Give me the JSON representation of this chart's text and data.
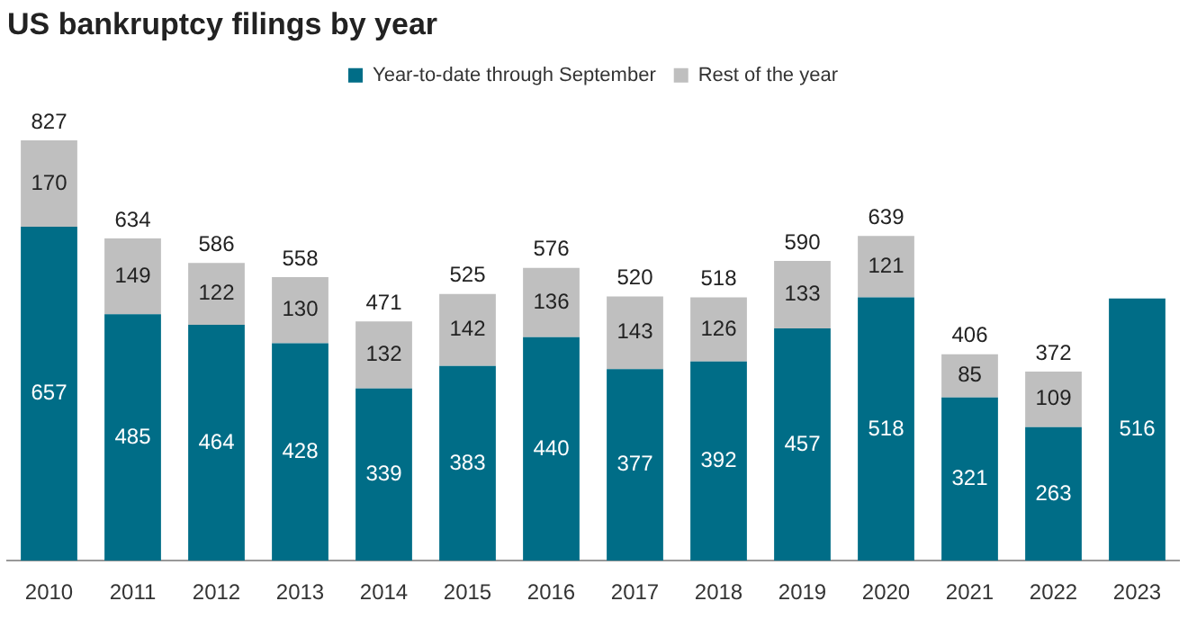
{
  "chart_data": {
    "type": "bar",
    "title": "US bankruptcy filings by year",
    "categories": [
      "2010",
      "2011",
      "2012",
      "2013",
      "2014",
      "2015",
      "2016",
      "2017",
      "2018",
      "2019",
      "2020",
      "2021",
      "2022",
      "2023"
    ],
    "stacked": true,
    "data_labels": true,
    "legend": "top",
    "grid": false,
    "tick_labels": "x",
    "series": [
      {
        "name": "Year-to-date through September",
        "color": "#006d87",
        "values": [
          657,
          485,
          464,
          428,
          339,
          383,
          440,
          377,
          392,
          457,
          518,
          321,
          263,
          516
        ]
      },
      {
        "name": "Rest of the year",
        "color": "#bfbfbf",
        "values": [
          170,
          149,
          122,
          130,
          132,
          142,
          136,
          143,
          126,
          133,
          121,
          85,
          109,
          null
        ]
      }
    ],
    "totals": [
      "827",
      "634",
      "586",
      "558",
      "471",
      "525",
      "576",
      "520",
      "518",
      "590",
      "639",
      "406",
      "372",
      null
    ]
  }
}
